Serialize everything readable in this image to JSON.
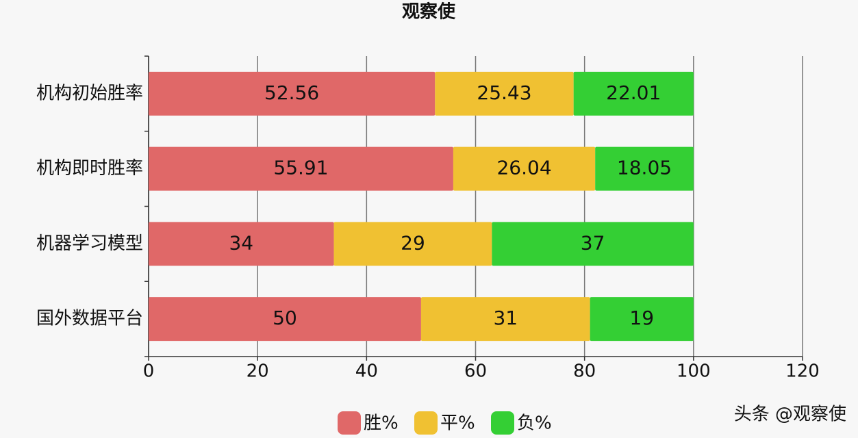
{
  "chart_data": {
    "type": "stacked-bar-horizontal",
    "title": "观察使",
    "categories": [
      "机构初始胜率",
      "机构即时胜率",
      "机器学习模型",
      "国外数据平台"
    ],
    "series": [
      {
        "name": "胜%",
        "color": "#e06868",
        "values": [
          52.56,
          55.91,
          34,
          50
        ]
      },
      {
        "name": "平%",
        "color": "#f0c132",
        "values": [
          25.43,
          26.04,
          29,
          31
        ]
      },
      {
        "name": "负%",
        "color": "#34cf34",
        "values": [
          22.01,
          18.05,
          37,
          19
        ]
      }
    ],
    "xlim": [
      0,
      120
    ],
    "xticks": [
      0,
      20,
      40,
      60,
      80,
      100,
      120
    ],
    "grid": true,
    "legend": "bottom"
  },
  "watermark": "头条 @观察使"
}
